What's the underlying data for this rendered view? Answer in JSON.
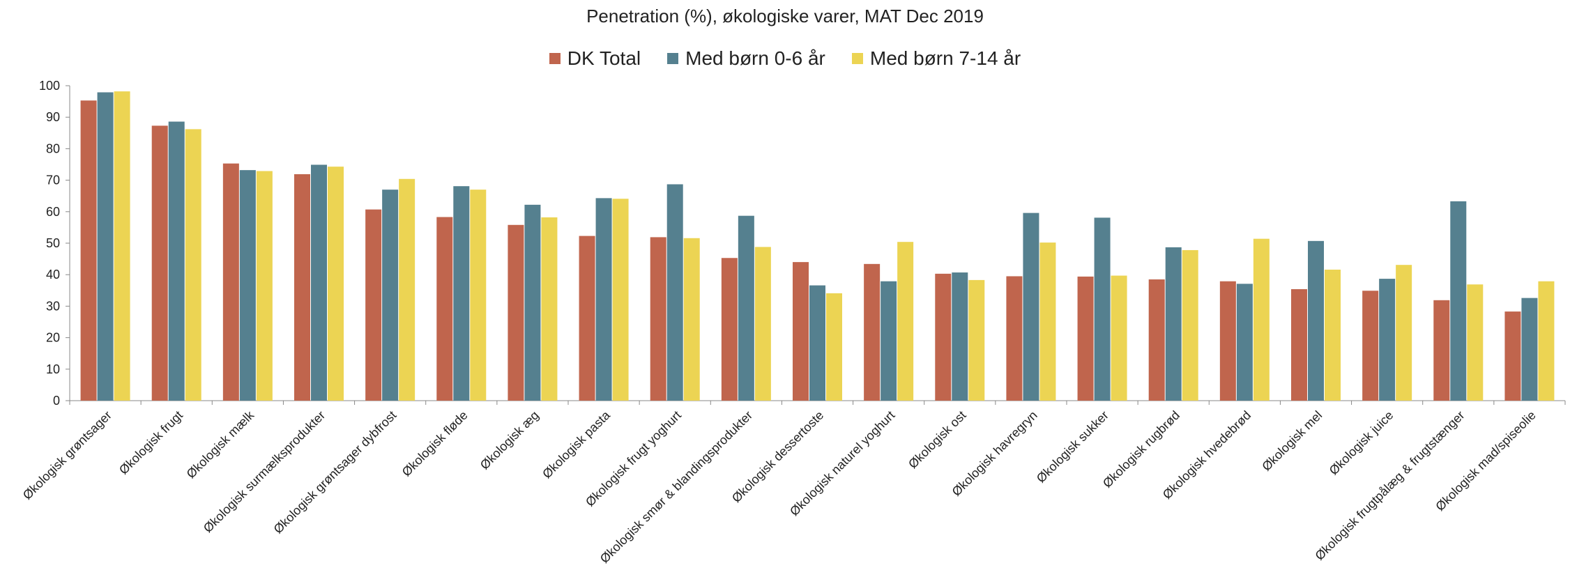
{
  "chart_data": {
    "type": "bar",
    "title": "Penetration (%), økologiske varer, MAT Dec 2019",
    "xlabel": "",
    "ylabel": "",
    "ylim": [
      0,
      100
    ],
    "yticks": [
      0,
      10,
      20,
      30,
      40,
      50,
      60,
      70,
      80,
      90,
      100
    ],
    "grid": false,
    "legend_position": "top-center",
    "categories": [
      "Økologisk grøntsager",
      "Økologisk frugt",
      "Økologisk mælk",
      "Økologisk surmælksprodukter",
      "Økologisk grøntsager dybfrost",
      "Økologisk fløde",
      "Økologisk æg",
      "Økologisk pasta",
      "Økologisk frugt yoghurt",
      "Økologisk smør & blandingsprodukter",
      "Økologisk dessertoste",
      "Økologisk naturel yoghurt",
      "Økologisk ost",
      "Økologisk havregryn",
      "Økologisk sukker",
      "Økologisk rugbrød",
      "Økologisk hvedebrød",
      "Økologisk mel",
      "Økologisk juice",
      "Økologisk frugtpålæg & frugtstænger",
      "Økologisk mad/spiseolie"
    ],
    "series": [
      {
        "name": "DK Total",
        "color": "#c0654d",
        "values": [
          95.3,
          87.3,
          75.3,
          71.9,
          60.7,
          58.3,
          55.8,
          52.3,
          51.9,
          45.3,
          44.0,
          43.4,
          40.3,
          39.5,
          39.4,
          38.5,
          37.9,
          35.4,
          34.9,
          31.9,
          28.3
        ]
      },
      {
        "name": "Med børn 0-6 år",
        "color": "#55808f",
        "values": [
          97.9,
          88.6,
          73.2,
          74.9,
          67.0,
          68.1,
          62.2,
          64.3,
          68.7,
          58.7,
          36.6,
          37.9,
          40.7,
          59.6,
          58.1,
          48.7,
          37.1,
          50.7,
          38.7,
          63.3,
          32.6
        ]
      },
      {
        "name": "Med børn 7-14 år",
        "color": "#ecd453",
        "values": [
          98.2,
          86.2,
          72.9,
          74.3,
          70.4,
          67.0,
          58.2,
          64.1,
          51.6,
          48.8,
          34.1,
          50.4,
          38.3,
          50.2,
          39.7,
          47.8,
          51.4,
          41.6,
          43.1,
          36.9,
          37.9
        ]
      }
    ]
  }
}
